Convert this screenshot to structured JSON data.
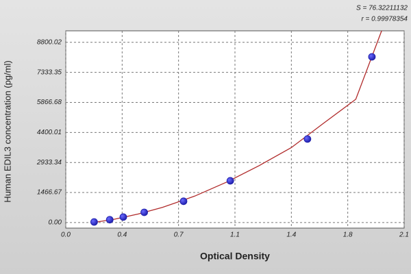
{
  "chart_data": {
    "type": "scatter",
    "annotations": [
      "S = 76.32211132",
      "r = 0.99978354"
    ],
    "x_label": "Optical Density",
    "y_label": "Human EDIL3 concentration (pg/ml)",
    "x": [
      0.176,
      0.273,
      0.357,
      0.487,
      0.731,
      1.021,
      1.5,
      1.9
    ],
    "values": [
      30,
      140,
      270,
      500,
      1040,
      2040,
      4080,
      8090
    ],
    "color": "#1c1ca8",
    "curve": {
      "x": [
        0.17,
        0.3,
        0.45,
        0.6,
        0.8,
        1.0,
        1.2,
        1.4,
        1.6,
        1.8,
        1.96
      ],
      "values": [
        0,
        160,
        420,
        740,
        1290,
        1980,
        2780,
        3660,
        4850,
        6020,
        9360
      ],
      "color": "#b02a2a"
    },
    "xlim": [
      0,
      2.1
    ],
    "ylim": [
      -270,
      9360
    ],
    "xticks": [
      {
        "value": 0,
        "label": "0.0"
      },
      {
        "value": 0.35,
        "label": "0.4"
      },
      {
        "value": 0.7,
        "label": "0.7"
      },
      {
        "value": 1.05,
        "label": "1.1"
      },
      {
        "value": 1.4,
        "label": "1.4"
      },
      {
        "value": 1.75,
        "label": "1.8"
      },
      {
        "value": 2.1,
        "label": "2.1"
      }
    ],
    "yticks": [
      {
        "value": 0,
        "label": "0.00"
      },
      {
        "value": 1466.67,
        "label": "1466.67"
      },
      {
        "value": 2933.34,
        "label": "2933.34"
      },
      {
        "value": 4400.01,
        "label": "4400.01"
      },
      {
        "value": 5866.68,
        "label": "5866.68"
      },
      {
        "value": 7333.35,
        "label": "7333.35"
      },
      {
        "value": 8800.02,
        "label": "8800.02"
      }
    ],
    "grid": true
  }
}
